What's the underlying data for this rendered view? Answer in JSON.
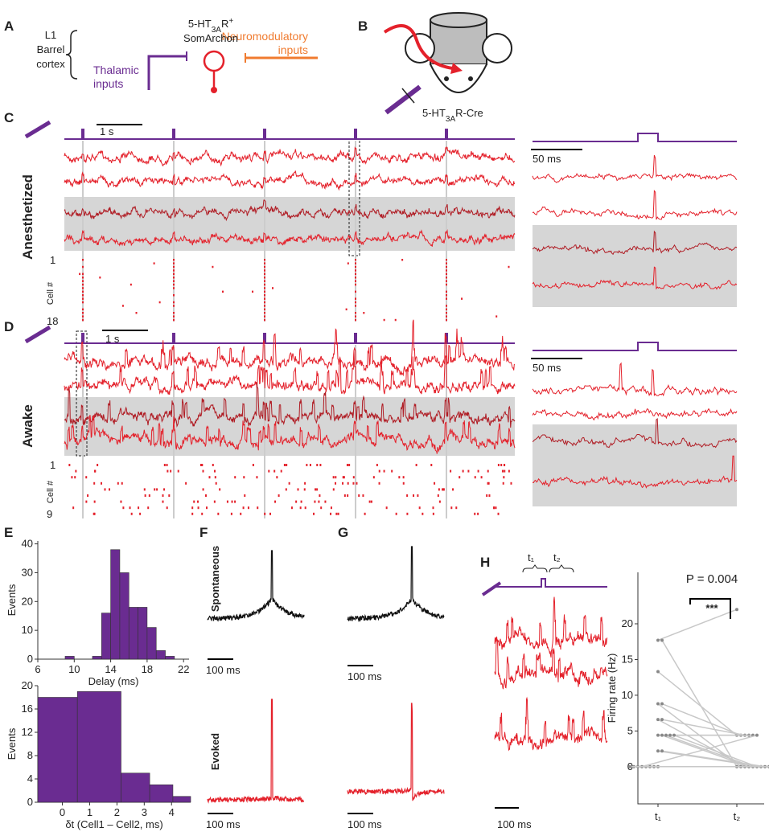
{
  "panel_labels": [
    "A",
    "B",
    "C",
    "D",
    "E",
    "F",
    "G",
    "H"
  ],
  "panel_a": {
    "layer": [
      "L1",
      "Barrel",
      "cortex"
    ],
    "thalamic": [
      "Thalamic",
      "inputs"
    ],
    "cell": [
      "5-HT",
      "3A",
      "R",
      "+"
    ],
    "cell_name": "SomArchon",
    "neuromod": [
      "Neuromodulatory",
      "inputs"
    ]
  },
  "panel_b": {
    "mouse": [
      "5-HT",
      "3A",
      "R-Cre"
    ]
  },
  "panel_c": {
    "scale_time": "1 s",
    "scale_zoom": "50 ms",
    "state": "Anesthetized",
    "raster_first": "1",
    "raster_axis": "Cell #",
    "raster_last": "18"
  },
  "panel_d": {
    "scale_time": "1 s",
    "scale_zoom": "50 ms",
    "state": "Awake",
    "raster_first": "1",
    "raster_axis": "Cell #",
    "raster_last": "9"
  },
  "panel_f": {
    "row1": "Spontaneous",
    "row2": "Evoked",
    "scale_top": "100 ms",
    "scale_bottom": "100 ms"
  },
  "panel_g": {
    "scale_top": "100 ms",
    "scale_bottom": "100 ms"
  },
  "panel_h": {
    "t1": "t₁",
    "t2": "t₂",
    "scale": "100 ms"
  },
  "chart_data": [
    {
      "type": "histogram",
      "xlabel": "Delay (ms)",
      "ylabel": "Events",
      "color": "#6a2c91",
      "bins": [
        9,
        10,
        11,
        12,
        13,
        14,
        15,
        16,
        17,
        18,
        19,
        20,
        21
      ],
      "values": [
        1,
        0,
        0,
        1,
        16,
        38,
        30,
        18,
        18,
        11,
        3,
        1
      ],
      "xlim": [
        6,
        22.6
      ],
      "ylim": [
        0,
        41
      ],
      "xticks": [
        6,
        10,
        14,
        18,
        22
      ],
      "yticks": [
        0,
        10,
        20,
        30,
        40
      ]
    },
    {
      "type": "histogram",
      "xlabel": "δt (Cell1 – Cell2, ms)",
      "ylabel": "Events",
      "color": "#6a2c91",
      "bins": [
        -0.9,
        0.55,
        2.15,
        3.2,
        4.05,
        4.7
      ],
      "values": [
        18,
        19,
        5,
        3,
        1
      ],
      "xlim": [
        -0.9,
        4.7
      ],
      "ylim": [
        0,
        20
      ],
      "xticks": [
        0,
        1,
        2,
        3,
        4
      ],
      "yticks": [
        0,
        4,
        8,
        12,
        16,
        20
      ]
    },
    {
      "type": "paired",
      "ylabel": "Firing rate (Hz)",
      "categories": [
        "t₁",
        "t₂"
      ],
      "color": "#c8c8c8",
      "pairs": [
        [
          17.7,
          22
        ],
        [
          17.7,
          0
        ],
        [
          13.3,
          4.4
        ],
        [
          8.8,
          0
        ],
        [
          8.8,
          4.4
        ],
        [
          6.6,
          0
        ],
        [
          6.6,
          4.4
        ],
        [
          4.4,
          4.4
        ],
        [
          4.4,
          0
        ],
        [
          4.4,
          0
        ],
        [
          4.4,
          4.4
        ],
        [
          4.4,
          0
        ],
        [
          2.2,
          0
        ],
        [
          2.2,
          0
        ],
        [
          0,
          0
        ],
        [
          0,
          0
        ],
        [
          0,
          0
        ],
        [
          0,
          0
        ],
        [
          0,
          4.4
        ],
        [
          0,
          0
        ],
        [
          0,
          0
        ],
        [
          0,
          0
        ]
      ],
      "ylim": [
        -5.2,
        27.2
      ],
      "yticks": [
        0,
        5,
        10,
        15,
        20
      ],
      "annotation": "P = 0.004",
      "significance": "***"
    }
  ]
}
